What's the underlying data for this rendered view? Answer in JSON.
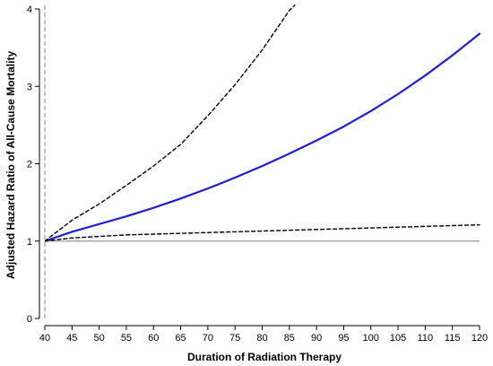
{
  "chart_data": {
    "type": "line",
    "title": "",
    "xlabel": "Duration of Radiation Therapy",
    "ylabel": "Adjusted Hazard Ratio of All-Cause Mortality",
    "xlim": [
      40,
      120
    ],
    "ylim": [
      0,
      4
    ],
    "xticks": [
      40,
      45,
      50,
      55,
      60,
      65,
      70,
      75,
      80,
      85,
      90,
      95,
      100,
      105,
      110,
      115,
      120
    ],
    "yticks": [
      0,
      1,
      2,
      3,
      4
    ],
    "reference_lines": {
      "horizontal_y": 1,
      "vertical_x": 40
    },
    "grid": false,
    "legend": "none",
    "series": [
      {
        "style": "solid",
        "color": "#1f1fd0",
        "x": [
          40,
          45,
          50,
          55,
          60,
          65,
          70,
          75,
          80,
          85,
          90,
          95,
          100,
          105,
          110,
          115,
          120
        ],
        "y": [
          1.0,
          1.12,
          1.22,
          1.32,
          1.43,
          1.55,
          1.68,
          1.82,
          1.97,
          2.13,
          2.3,
          2.48,
          2.68,
          2.9,
          3.14,
          3.4,
          3.68
        ]
      },
      {
        "style": "dashed",
        "color": "#000000",
        "x": [
          40,
          45,
          50,
          55,
          60,
          65,
          70,
          75,
          80,
          85,
          86
        ],
        "y": [
          1.0,
          1.27,
          1.48,
          1.72,
          1.97,
          2.25,
          2.62,
          3.02,
          3.47,
          3.98,
          4.05
        ]
      },
      {
        "style": "dashed",
        "color": "#000000",
        "x": [
          40,
          45,
          50,
          55,
          60,
          65,
          70,
          75,
          80,
          85,
          90,
          95,
          100,
          105,
          110,
          115,
          120
        ],
        "y": [
          1.0,
          1.04,
          1.06,
          1.08,
          1.09,
          1.1,
          1.11,
          1.12,
          1.13,
          1.14,
          1.15,
          1.16,
          1.17,
          1.18,
          1.19,
          1.2,
          1.21
        ]
      }
    ]
  }
}
